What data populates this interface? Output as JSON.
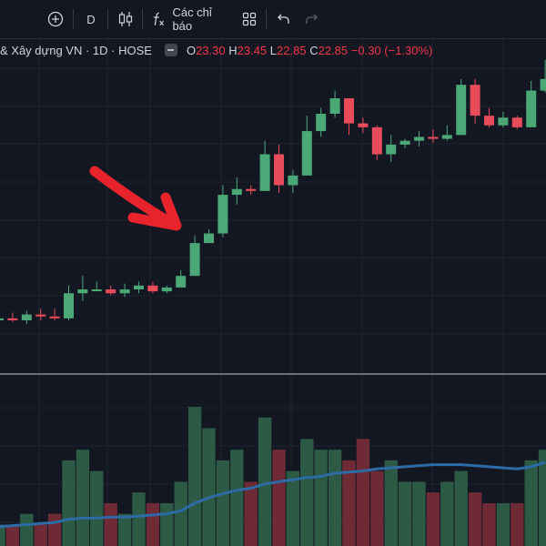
{
  "toolbar": {
    "add_symbol_icon": "plus-circle-icon",
    "interval_label": "D",
    "chart_type_icon": "candles-icon",
    "indicators_icon": "fx-icon",
    "indicators_label": "Các chỉ báo",
    "layout_icon": "grid-icon",
    "undo_icon": "undo-icon",
    "redo_icon": "redo-icon"
  },
  "legend": {
    "symbol_title": "& Xây dựng VN · 1D · HOSE",
    "open_label": "O",
    "open_value": "23.30",
    "high_label": "H",
    "high_value": "23.45",
    "low_label": "L",
    "low_value": "22.85",
    "close_label": "C",
    "close_value": "22.85",
    "change": "−0.30 (−1.30%)"
  },
  "colors": {
    "up": "#4ca977",
    "down": "#e84c5b",
    "vol_up": "#2c5a45",
    "vol_down": "#6e2b36",
    "ma": "#2d6ba7",
    "annotation": "#e8232c",
    "background": "#131722",
    "grid": "#1f2330"
  },
  "chart_data": {
    "type": "candlestick",
    "note_price_axis": "hidden",
    "candles": [
      {
        "o": 5.0,
        "h": 5.3,
        "l": 4.7,
        "c": 5.1
      },
      {
        "o": 5.1,
        "h": 5.4,
        "l": 4.9,
        "c": 5.0
      },
      {
        "o": 5.0,
        "h": 5.5,
        "l": 4.8,
        "c": 5.3
      },
      {
        "o": 5.3,
        "h": 5.6,
        "l": 5.0,
        "c": 5.2
      },
      {
        "o": 5.2,
        "h": 5.6,
        "l": 5.0,
        "c": 5.1
      },
      {
        "o": 5.1,
        "h": 6.8,
        "l": 5.0,
        "c": 6.4
      },
      {
        "o": 6.4,
        "h": 7.3,
        "l": 6.0,
        "c": 6.6
      },
      {
        "o": 6.6,
        "h": 7.0,
        "l": 6.5,
        "c": 6.6
      },
      {
        "o": 6.6,
        "h": 6.8,
        "l": 6.3,
        "c": 6.4
      },
      {
        "o": 6.4,
        "h": 6.9,
        "l": 6.2,
        "c": 6.6
      },
      {
        "o": 6.6,
        "h": 7.0,
        "l": 6.4,
        "c": 6.8
      },
      {
        "o": 6.8,
        "h": 7.0,
        "l": 6.4,
        "c": 6.5
      },
      {
        "o": 6.5,
        "h": 6.8,
        "l": 6.4,
        "c": 6.7
      },
      {
        "o": 6.7,
        "h": 7.6,
        "l": 6.7,
        "c": 7.3
      },
      {
        "o": 7.3,
        "h": 9.4,
        "l": 7.3,
        "c": 9.0
      },
      {
        "o": 9.0,
        "h": 9.7,
        "l": 9.0,
        "c": 9.5
      },
      {
        "o": 9.5,
        "h": 12.0,
        "l": 9.3,
        "c": 11.5
      },
      {
        "o": 11.5,
        "h": 12.4,
        "l": 11.0,
        "c": 11.8
      },
      {
        "o": 11.8,
        "h": 12.0,
        "l": 11.5,
        "c": 11.7
      },
      {
        "o": 11.7,
        "h": 14.3,
        "l": 11.7,
        "c": 13.6
      },
      {
        "o": 13.6,
        "h": 14.1,
        "l": 11.6,
        "c": 12.0
      },
      {
        "o": 12.0,
        "h": 12.8,
        "l": 11.6,
        "c": 12.5
      },
      {
        "o": 12.5,
        "h": 15.6,
        "l": 12.5,
        "c": 14.8
      },
      {
        "o": 14.8,
        "h": 16.0,
        "l": 14.5,
        "c": 15.7
      },
      {
        "o": 15.7,
        "h": 16.9,
        "l": 15.5,
        "c": 16.5
      },
      {
        "o": 16.5,
        "h": 16.5,
        "l": 14.6,
        "c": 15.2
      },
      {
        "o": 15.2,
        "h": 15.5,
        "l": 14.7,
        "c": 15.0
      },
      {
        "o": 15.0,
        "h": 15.1,
        "l": 13.3,
        "c": 13.6
      },
      {
        "o": 13.6,
        "h": 14.6,
        "l": 13.2,
        "c": 14.1
      },
      {
        "o": 14.1,
        "h": 14.4,
        "l": 13.9,
        "c": 14.3
      },
      {
        "o": 14.3,
        "h": 14.8,
        "l": 14.0,
        "c": 14.5
      },
      {
        "o": 14.5,
        "h": 14.9,
        "l": 14.2,
        "c": 14.4
      },
      {
        "o": 14.4,
        "h": 15.1,
        "l": 14.3,
        "c": 14.6
      },
      {
        "o": 14.6,
        "h": 17.5,
        "l": 14.6,
        "c": 17.2
      },
      {
        "o": 17.2,
        "h": 17.5,
        "l": 15.2,
        "c": 15.6
      },
      {
        "o": 15.6,
        "h": 16.0,
        "l": 15.0,
        "c": 15.1
      },
      {
        "o": 15.1,
        "h": 15.8,
        "l": 15.0,
        "c": 15.5
      },
      {
        "o": 15.5,
        "h": 15.6,
        "l": 14.9,
        "c": 15.0
      },
      {
        "o": 15.0,
        "h": 17.4,
        "l": 15.0,
        "c": 16.9
      },
      {
        "o": 16.9,
        "h": 18.5,
        "l": 16.8,
        "c": 17.5
      }
    ],
    "volume": [
      2,
      2,
      3,
      2,
      3,
      8,
      9,
      7,
      4,
      3,
      5,
      4,
      4,
      6,
      13,
      11,
      8,
      9,
      6,
      12,
      9,
      7,
      10,
      9,
      9,
      8,
      10,
      7,
      8,
      6,
      6,
      5,
      6,
      7,
      5,
      4,
      4,
      4,
      8,
      9
    ],
    "volume_ma": [
      1.8,
      1.9,
      2.0,
      2.1,
      2.2,
      2.5,
      2.6,
      2.6,
      2.7,
      2.7,
      2.8,
      2.9,
      3.0,
      3.3,
      4.0,
      4.5,
      4.9,
      5.2,
      5.4,
      5.8,
      6.0,
      6.2,
      6.4,
      6.5,
      6.8,
      6.9,
      7.0,
      7.2,
      7.3,
      7.4,
      7.5,
      7.6,
      7.6,
      7.6,
      7.5,
      7.4,
      7.3,
      7.2,
      7.4,
      7.8
    ]
  }
}
